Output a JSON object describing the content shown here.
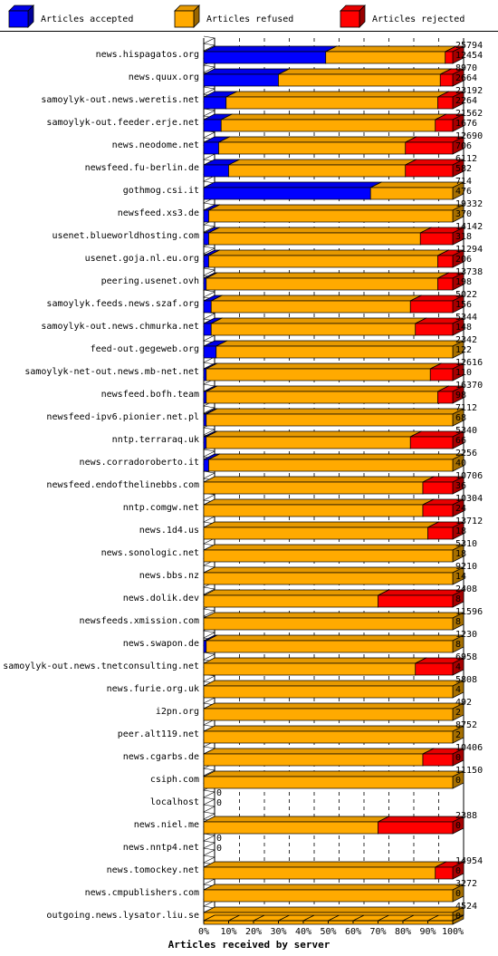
{
  "chart_data": {
    "type": "bar",
    "stacked": true,
    "orientation": "horizontal",
    "xlabel": "Articles received by server",
    "xlim": [
      0,
      100
    ],
    "x_ticks": [
      "0%",
      "10%",
      "20%",
      "30%",
      "40%",
      "50%",
      "60%",
      "70%",
      "80%",
      "90%",
      "100%"
    ],
    "grid": true,
    "legend_position": "top",
    "series": [
      {
        "name": "Articles accepted",
        "color": "#0000ff"
      },
      {
        "name": "Articles refused",
        "color": "#ffaa00"
      },
      {
        "name": "Articles rejected",
        "color": "#ff0000"
      }
    ],
    "rows": [
      {
        "server": "news.hispagatos.org",
        "total": "25794",
        "second": "12454",
        "pct": [
          49,
          48,
          3
        ],
        "total_value": 25794,
        "second_value": 12454
      },
      {
        "server": "news.quux.org",
        "total": "8970",
        "second": "2664",
        "pct": [
          30,
          65,
          5
        ],
        "total_value": 8970,
        "second_value": 2664
      },
      {
        "server": "samoylyk-out.news.weretis.net",
        "total": "23192",
        "second": "2264",
        "pct": [
          9,
          85,
          6
        ],
        "total_value": 23192,
        "second_value": 2264
      },
      {
        "server": "samoylyk-out.feeder.erje.net",
        "total": "21562",
        "second": "1676",
        "pct": [
          7,
          86,
          7
        ],
        "total_value": 21562,
        "second_value": 1676
      },
      {
        "server": "news.neodome.net",
        "total": "12690",
        "second": "706",
        "pct": [
          6,
          75,
          19
        ],
        "total_value": 12690,
        "second_value": 706
      },
      {
        "server": "newsfeed.fu-berlin.de",
        "total": "6112",
        "second": "582",
        "pct": [
          10,
          71,
          19
        ],
        "total_value": 6112,
        "second_value": 582
      },
      {
        "server": "gothmog.csi.it",
        "total": "714",
        "second": "476",
        "pct": [
          67,
          33,
          0
        ],
        "total_value": 714,
        "second_value": 476
      },
      {
        "server": "newsfeed.xs3.de",
        "total": "19332",
        "second": "370",
        "pct": [
          2,
          98,
          0
        ],
        "total_value": 19332,
        "second_value": 370
      },
      {
        "server": "usenet.blueworldhosting.com",
        "total": "14142",
        "second": "318",
        "pct": [
          2,
          85,
          13
        ],
        "total_value": 14142,
        "second_value": 318
      },
      {
        "server": "usenet.goja.nl.eu.org",
        "total": "11294",
        "second": "206",
        "pct": [
          2,
          92,
          6
        ],
        "total_value": 11294,
        "second_value": 206
      },
      {
        "server": "peering.usenet.ovh",
        "total": "13738",
        "second": "198",
        "pct": [
          1,
          93,
          6
        ],
        "total_value": 13738,
        "second_value": 198
      },
      {
        "server": "samoylyk.feeds.news.szaf.org",
        "total": "5022",
        "second": "156",
        "pct": [
          3,
          80,
          17
        ],
        "total_value": 5022,
        "second_value": 156
      },
      {
        "server": "samoylyk-out.news.chmurka.net",
        "total": "5344",
        "second": "148",
        "pct": [
          3,
          82,
          15
        ],
        "total_value": 5344,
        "second_value": 148
      },
      {
        "server": "feed-out.gegeweb.org",
        "total": "2342",
        "second": "122",
        "pct": [
          5,
          95,
          0
        ],
        "total_value": 2342,
        "second_value": 122
      },
      {
        "server": "samoylyk-net-out.news.mb-net.net",
        "total": "12616",
        "second": "110",
        "pct": [
          1,
          90,
          9
        ],
        "total_value": 12616,
        "second_value": 110
      },
      {
        "server": "newsfeed.bofh.team",
        "total": "16370",
        "second": "98",
        "pct": [
          1,
          93,
          6
        ],
        "total_value": 16370,
        "second_value": 98
      },
      {
        "server": "newsfeed-ipv6.pionier.net.pl",
        "total": "7112",
        "second": "68",
        "pct": [
          1,
          99,
          0
        ],
        "total_value": 7112,
        "second_value": 68
      },
      {
        "server": "nntp.terraraq.uk",
        "total": "5340",
        "second": "66",
        "pct": [
          1,
          82,
          17
        ],
        "total_value": 5340,
        "second_value": 66
      },
      {
        "server": "news.corradoroberto.it",
        "total": "2256",
        "second": "40",
        "pct": [
          2,
          98,
          0
        ],
        "total_value": 2256,
        "second_value": 40
      },
      {
        "server": "newsfeed.endofthelinebbs.com",
        "total": "10706",
        "second": "36",
        "pct": [
          0,
          88,
          12
        ],
        "total_value": 10706,
        "second_value": 36
      },
      {
        "server": "nntp.comgw.net",
        "total": "10304",
        "second": "24",
        "pct": [
          0,
          88,
          12
        ],
        "total_value": 10304,
        "second_value": 24
      },
      {
        "server": "news.1d4.us",
        "total": "13712",
        "second": "18",
        "pct": [
          0,
          90,
          10
        ],
        "total_value": 13712,
        "second_value": 18
      },
      {
        "server": "news.sonologic.net",
        "total": "5310",
        "second": "18",
        "pct": [
          0,
          100,
          0
        ],
        "total_value": 5310,
        "second_value": 18
      },
      {
        "server": "news.bbs.nz",
        "total": "9210",
        "second": "14",
        "pct": [
          0,
          100,
          0
        ],
        "total_value": 9210,
        "second_value": 14
      },
      {
        "server": "news.dolik.dev",
        "total": "2408",
        "second": "8",
        "pct": [
          0,
          70,
          30
        ],
        "total_value": 2408,
        "second_value": 8
      },
      {
        "server": "newsfeeds.xmission.com",
        "total": "11596",
        "second": "8",
        "pct": [
          0,
          100,
          0
        ],
        "total_value": 11596,
        "second_value": 8
      },
      {
        "server": "news.swapon.de",
        "total": "1230",
        "second": "8",
        "pct": [
          1,
          99,
          0
        ],
        "total_value": 1230,
        "second_value": 8
      },
      {
        "server": "samoylyk-out.news.tnetconsulting.net",
        "total": "6958",
        "second": "4",
        "pct": [
          0,
          85,
          15
        ],
        "total_value": 6958,
        "second_value": 4
      },
      {
        "server": "news.furie.org.uk",
        "total": "5808",
        "second": "4",
        "pct": [
          0,
          100,
          0
        ],
        "total_value": 5808,
        "second_value": 4
      },
      {
        "server": "i2pn.org",
        "total": "492",
        "second": "2",
        "pct": [
          0,
          100,
          0
        ],
        "total_value": 492,
        "second_value": 2
      },
      {
        "server": "peer.alt119.net",
        "total": "8752",
        "second": "2",
        "pct": [
          0,
          100,
          0
        ],
        "total_value": 8752,
        "second_value": 2
      },
      {
        "server": "news.cgarbs.de",
        "total": "10406",
        "second": "0",
        "pct": [
          0,
          88,
          12
        ],
        "total_value": 10406,
        "second_value": 0
      },
      {
        "server": "csiph.com",
        "total": "11150",
        "second": "0",
        "pct": [
          0,
          100,
          0
        ],
        "total_value": 11150,
        "second_value": 0
      },
      {
        "server": "localhost",
        "total": "0",
        "second": "0",
        "pct": [
          0,
          0,
          0
        ],
        "total_value": 0,
        "second_value": 0
      },
      {
        "server": "news.niel.me",
        "total": "2388",
        "second": "0",
        "pct": [
          0,
          70,
          30
        ],
        "total_value": 2388,
        "second_value": 0
      },
      {
        "server": "news.nntp4.net",
        "total": "0",
        "second": "0",
        "pct": [
          0,
          0,
          0
        ],
        "total_value": 0,
        "second_value": 0
      },
      {
        "server": "news.tomockey.net",
        "total": "14954",
        "second": "0",
        "pct": [
          0,
          93,
          7
        ],
        "total_value": 14954,
        "second_value": 0
      },
      {
        "server": "news.cmpublishers.com",
        "total": "3272",
        "second": "0",
        "pct": [
          0,
          100,
          0
        ],
        "total_value": 3272,
        "second_value": 0
      },
      {
        "server": "outgoing.news.lysator.liu.se",
        "total": "4524",
        "second": "0",
        "pct": [
          0,
          100,
          0
        ],
        "total_value": 4524,
        "second_value": 0
      }
    ]
  }
}
